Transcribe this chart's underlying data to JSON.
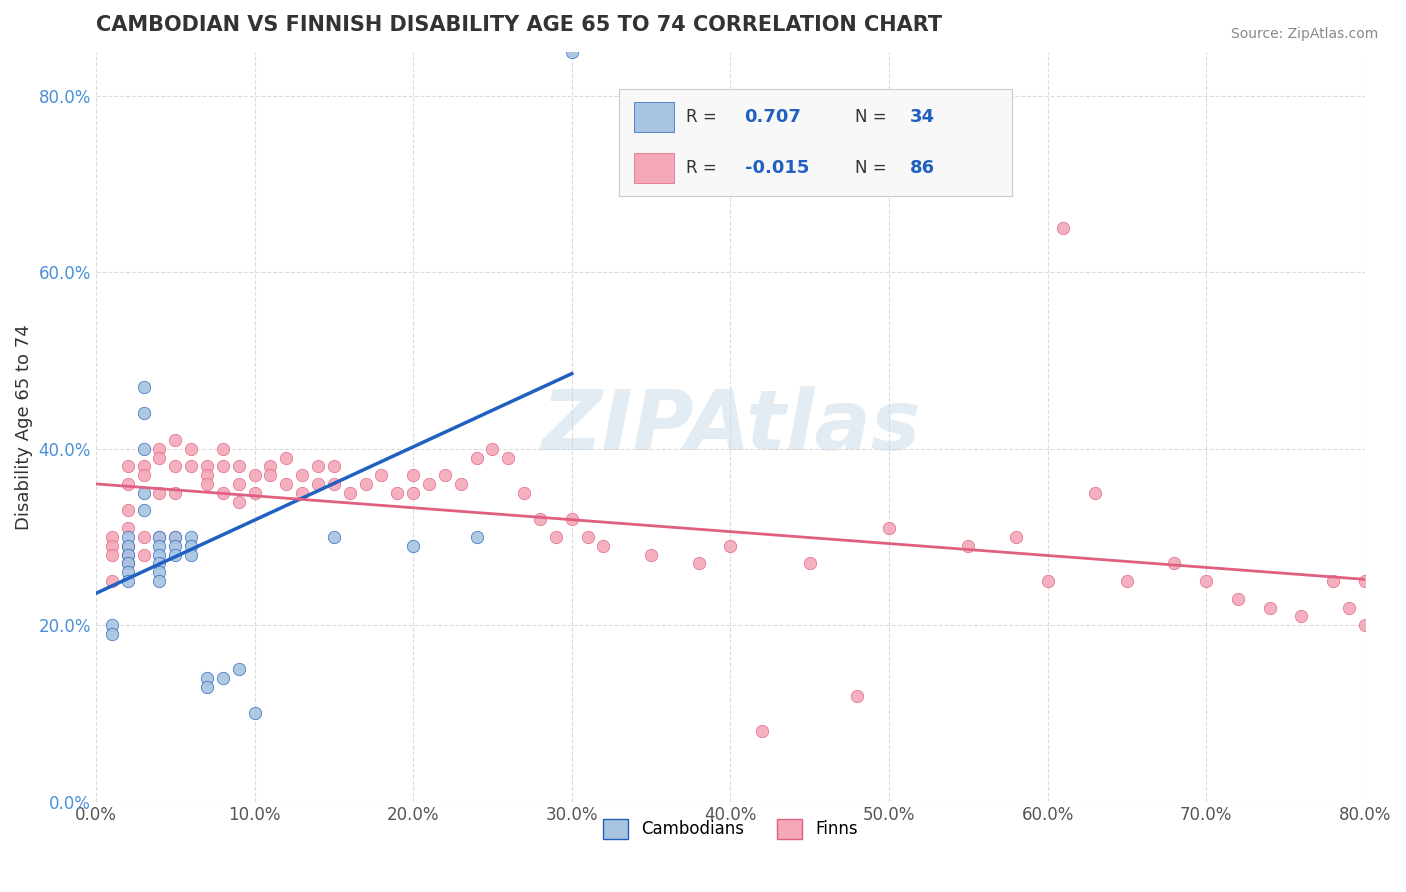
{
  "title": "CAMBODIAN VS FINNISH DISABILITY AGE 65 TO 74 CORRELATION CHART",
  "source": "Source: ZipAtlas.com",
  "ylabel": "Disability Age 65 to 74",
  "xlabel": "",
  "xlim": [
    0.0,
    0.8
  ],
  "ylim": [
    0.0,
    0.85
  ],
  "xticks": [
    0.0,
    0.1,
    0.2,
    0.3,
    0.4,
    0.5,
    0.6,
    0.7,
    0.8
  ],
  "yticks": [
    0.0,
    0.2,
    0.4,
    0.6,
    0.8
  ],
  "xtick_labels": [
    "0.0%",
    "10.0%",
    "20.0%",
    "30.0%",
    "40.0%",
    "50.0%",
    "60.0%",
    "70.0%",
    "80.0%"
  ],
  "ytick_labels": [
    "0.0%",
    "20.0%",
    "40.0%",
    "60.0%",
    "80.0%"
  ],
  "cambodian_color": "#a8c4e0",
  "finn_color": "#f4a8b8",
  "cambodian_line_color": "#2060c0",
  "finn_line_color": "#e06080",
  "watermark": "ZIPAtlas",
  "watermark_color": "#c8d8e8",
  "legend_R_cambodian": "0.707",
  "legend_N_cambodian": "34",
  "legend_R_finn": "-0.015",
  "legend_N_finn": "86",
  "cambodian_scatter_x": [
    0.01,
    0.01,
    0.02,
    0.02,
    0.02,
    0.02,
    0.02,
    0.02,
    0.03,
    0.03,
    0.03,
    0.03,
    0.03,
    0.04,
    0.04,
    0.04,
    0.04,
    0.04,
    0.04,
    0.05,
    0.05,
    0.05,
    0.06,
    0.06,
    0.06,
    0.07,
    0.07,
    0.08,
    0.09,
    0.1,
    0.15,
    0.2,
    0.24,
    0.3
  ],
  "cambodian_scatter_y": [
    0.2,
    0.19,
    0.3,
    0.29,
    0.28,
    0.27,
    0.26,
    0.25,
    0.47,
    0.44,
    0.4,
    0.35,
    0.33,
    0.3,
    0.29,
    0.28,
    0.27,
    0.26,
    0.25,
    0.3,
    0.29,
    0.28,
    0.3,
    0.29,
    0.28,
    0.14,
    0.13,
    0.14,
    0.15,
    0.1,
    0.3,
    0.29,
    0.3,
    0.85
  ],
  "finn_scatter_x": [
    0.01,
    0.01,
    0.01,
    0.01,
    0.02,
    0.02,
    0.02,
    0.02,
    0.02,
    0.02,
    0.02,
    0.03,
    0.03,
    0.03,
    0.03,
    0.04,
    0.04,
    0.04,
    0.04,
    0.05,
    0.05,
    0.05,
    0.05,
    0.06,
    0.06,
    0.07,
    0.07,
    0.07,
    0.08,
    0.08,
    0.08,
    0.09,
    0.09,
    0.09,
    0.1,
    0.1,
    0.11,
    0.11,
    0.12,
    0.12,
    0.13,
    0.13,
    0.14,
    0.14,
    0.15,
    0.15,
    0.16,
    0.17,
    0.18,
    0.19,
    0.2,
    0.2,
    0.21,
    0.22,
    0.23,
    0.24,
    0.25,
    0.26,
    0.27,
    0.28,
    0.29,
    0.3,
    0.31,
    0.32,
    0.35,
    0.38,
    0.4,
    0.45,
    0.5,
    0.55,
    0.58,
    0.6,
    0.65,
    0.68,
    0.7,
    0.72,
    0.74,
    0.76,
    0.78,
    0.79,
    0.8,
    0.8,
    0.61,
    0.63,
    0.48,
    0.42
  ],
  "finn_scatter_y": [
    0.3,
    0.29,
    0.28,
    0.25,
    0.38,
    0.36,
    0.33,
    0.31,
    0.29,
    0.28,
    0.27,
    0.38,
    0.37,
    0.3,
    0.28,
    0.4,
    0.39,
    0.35,
    0.3,
    0.41,
    0.38,
    0.35,
    0.3,
    0.4,
    0.38,
    0.38,
    0.37,
    0.36,
    0.4,
    0.38,
    0.35,
    0.38,
    0.36,
    0.34,
    0.37,
    0.35,
    0.38,
    0.37,
    0.39,
    0.36,
    0.37,
    0.35,
    0.38,
    0.36,
    0.38,
    0.36,
    0.35,
    0.36,
    0.37,
    0.35,
    0.37,
    0.35,
    0.36,
    0.37,
    0.36,
    0.39,
    0.4,
    0.39,
    0.35,
    0.32,
    0.3,
    0.32,
    0.3,
    0.29,
    0.28,
    0.27,
    0.29,
    0.27,
    0.31,
    0.29,
    0.3,
    0.25,
    0.25,
    0.27,
    0.25,
    0.23,
    0.22,
    0.21,
    0.25,
    0.22,
    0.2,
    0.25,
    0.65,
    0.35,
    0.12,
    0.08
  ]
}
